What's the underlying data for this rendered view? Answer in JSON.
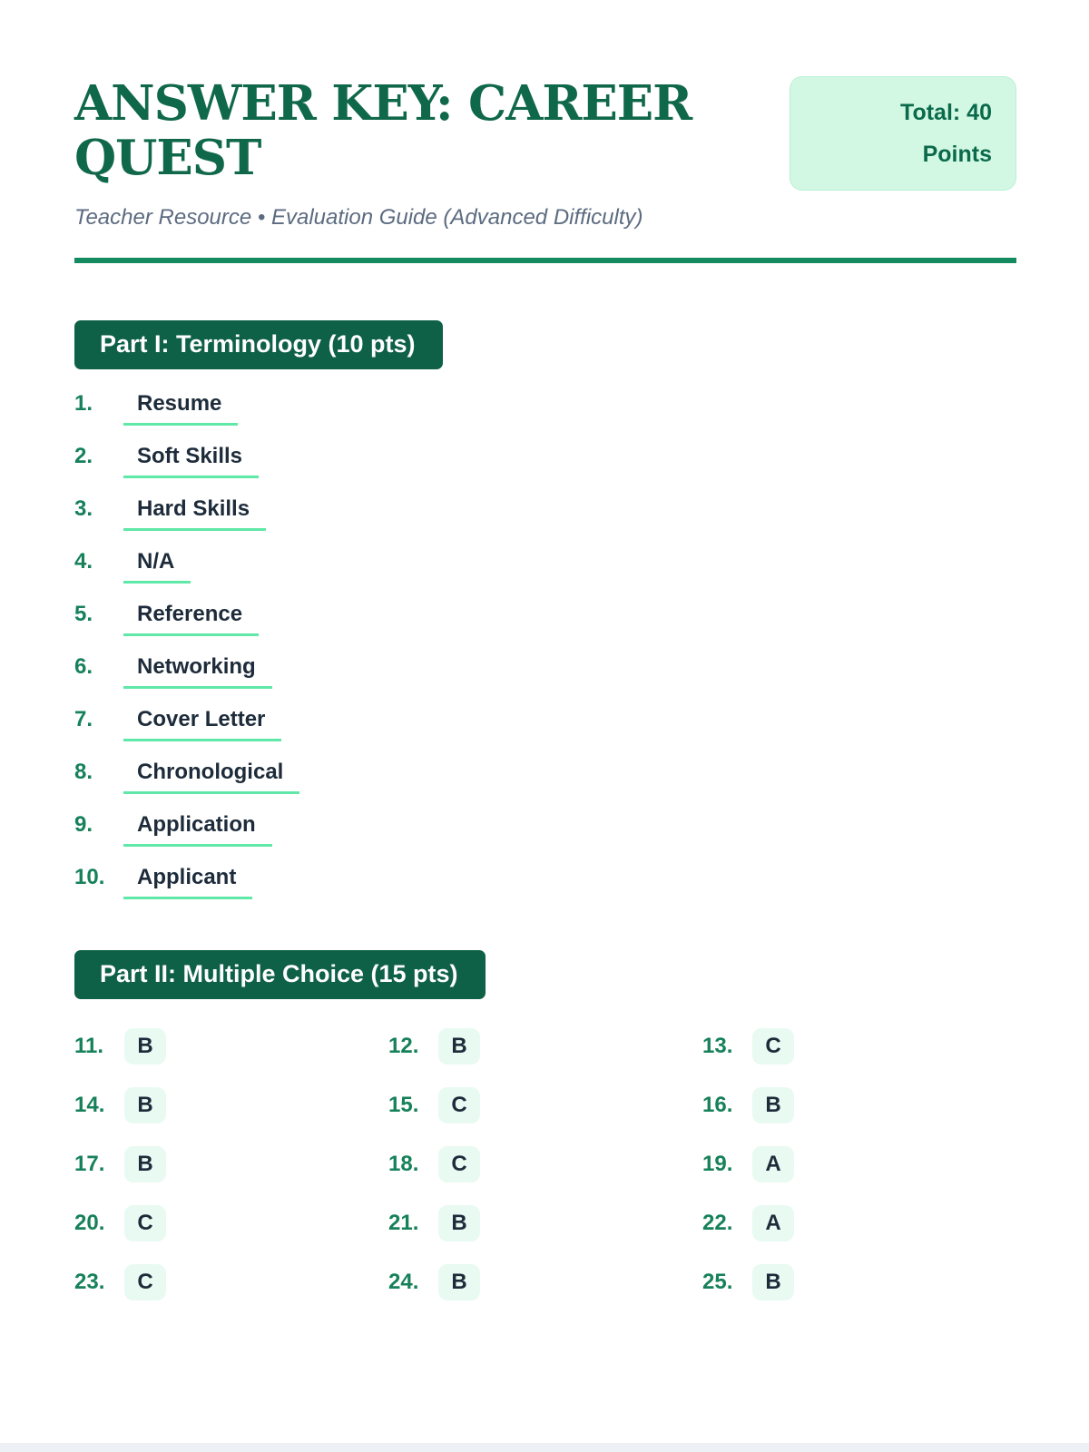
{
  "header": {
    "title": "ANSWER KEY: CAREER QUEST",
    "subtitle": "Teacher Resource • Evaluation Guide (Advanced Difficulty)",
    "total_badge": "Total: 40 Points"
  },
  "part1": {
    "heading": "Part I: Terminology (10 pts)",
    "items": [
      {
        "num": "1.",
        "answer": "Resume"
      },
      {
        "num": "2.",
        "answer": "Soft Skills"
      },
      {
        "num": "3.",
        "answer": "Hard Skills"
      },
      {
        "num": "4.",
        "answer": "N/A"
      },
      {
        "num": "5.",
        "answer": "Reference"
      },
      {
        "num": "6.",
        "answer": "Networking"
      },
      {
        "num": "7.",
        "answer": "Cover Letter"
      },
      {
        "num": "8.",
        "answer": "Chronological"
      },
      {
        "num": "9.",
        "answer": "Application"
      },
      {
        "num": "10.",
        "answer": "Applicant"
      }
    ]
  },
  "part2": {
    "heading": "Part II: Multiple Choice (15 pts)",
    "items": [
      {
        "num": "11.",
        "answer": "B"
      },
      {
        "num": "12.",
        "answer": "B"
      },
      {
        "num": "13.",
        "answer": "C"
      },
      {
        "num": "14.",
        "answer": "B"
      },
      {
        "num": "15.",
        "answer": "C"
      },
      {
        "num": "16.",
        "answer": "B"
      },
      {
        "num": "17.",
        "answer": "B"
      },
      {
        "num": "18.",
        "answer": "C"
      },
      {
        "num": "19.",
        "answer": "A"
      },
      {
        "num": "20.",
        "answer": "C"
      },
      {
        "num": "21.",
        "answer": "B"
      },
      {
        "num": "22.",
        "answer": "A"
      },
      {
        "num": "23.",
        "answer": "C"
      },
      {
        "num": "24.",
        "answer": "B"
      },
      {
        "num": "25.",
        "answer": "B"
      }
    ]
  },
  "colors": {
    "title_green": "#10684a",
    "banner_green": "#0e6046",
    "rule_green": "#148a60",
    "number_green": "#16815a",
    "underline_mint": "#5fe8a8",
    "mc_badge_bg": "#e8faf1",
    "total_badge_bg": "#d2f8e3",
    "total_badge_border": "#b9efd3",
    "total_badge_text": "#0b6a4c",
    "answer_navy": "#1d2b3a",
    "subtitle_slate": "#5c6b80",
    "footer_strip": "#edf0f4"
  }
}
